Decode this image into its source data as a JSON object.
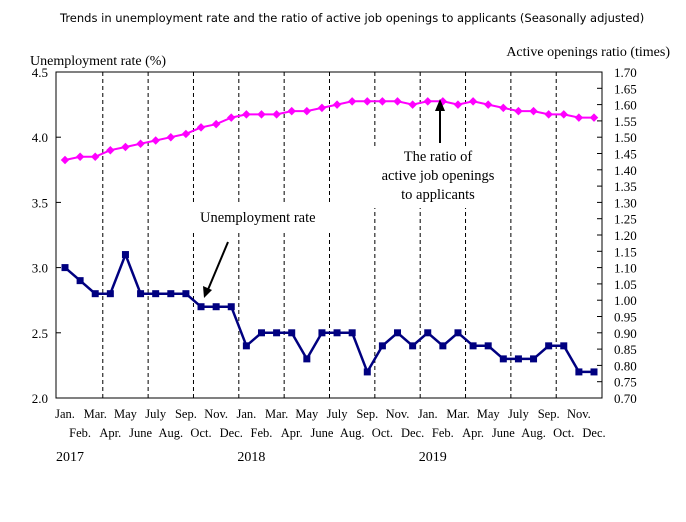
{
  "chart_data": {
    "type": "line",
    "title": "Trends in unemployment rate and the ratio of active job openings to applicants (Seasonally adjusted)",
    "ylabel_left": "Unemployment rate (%)",
    "ylabel_right": "Active openings ratio (times)",
    "y_left_ticks": [
      "4.5",
      "4.0",
      "3.5",
      "3.0",
      "2.5",
      "2.0"
    ],
    "y_right_ticks": [
      "1.70",
      "1.65",
      "1.60",
      "1.55",
      "1.50",
      "1.45",
      "1.40",
      "1.35",
      "1.30",
      "1.25",
      "1.20",
      "1.15",
      "1.10",
      "1.05",
      "1.00",
      "0.95",
      "0.90",
      "0.85",
      "0.80",
      "0.75",
      "0.70"
    ],
    "ylim_left": [
      2.0,
      4.5
    ],
    "ylim_right": [
      0.7,
      1.7
    ],
    "categories": [
      "Jan.",
      "Feb.",
      "Mar.",
      "Apr.",
      "May",
      "June",
      "July",
      "Aug.",
      "Sep.",
      "Oct.",
      "Nov.",
      "Dec.",
      "Jan.",
      "Feb.",
      "Mar.",
      "Apr.",
      "May",
      "June",
      "July",
      "Aug.",
      "Sep.",
      "Oct.",
      "Nov.",
      "Dec.",
      "Jan.",
      "Feb.",
      "Mar.",
      "Apr.",
      "May",
      "June",
      "July",
      "Aug.",
      "Sep.",
      "Oct.",
      "Nov.",
      "Dec."
    ],
    "years": [
      "2017",
      "2018",
      "2019"
    ],
    "series": [
      {
        "name": "Unemployment rate",
        "axis": "left",
        "color": "#000080",
        "values": [
          3.0,
          2.9,
          2.8,
          2.8,
          3.1,
          2.8,
          2.8,
          2.8,
          2.8,
          2.7,
          2.7,
          2.7,
          2.4,
          2.5,
          2.5,
          2.5,
          2.3,
          2.5,
          2.5,
          2.5,
          2.2,
          2.4,
          2.5,
          2.4,
          2.5,
          2.4,
          2.5,
          2.4,
          2.4,
          2.3,
          2.3,
          2.3,
          2.4,
          2.4,
          2.2,
          2.2
        ]
      },
      {
        "name": "The ratio of active job openings to applicants",
        "axis": "right",
        "color": "#ff00ff",
        "values": [
          1.43,
          1.44,
          1.44,
          1.46,
          1.47,
          1.48,
          1.49,
          1.5,
          1.51,
          1.53,
          1.54,
          1.56,
          1.57,
          1.57,
          1.57,
          1.58,
          1.58,
          1.59,
          1.6,
          1.61,
          1.61,
          1.61,
          1.61,
          1.6,
          1.61,
          1.61,
          1.6,
          1.61,
          1.6,
          1.59,
          1.58,
          1.58,
          1.57,
          1.57,
          1.56,
          1.56
        ]
      }
    ],
    "annotations": {
      "unemployment": "Unemployment rate",
      "ratio_line1": "The ratio of",
      "ratio_line2": "active job openings",
      "ratio_line3": "to applicants"
    }
  }
}
